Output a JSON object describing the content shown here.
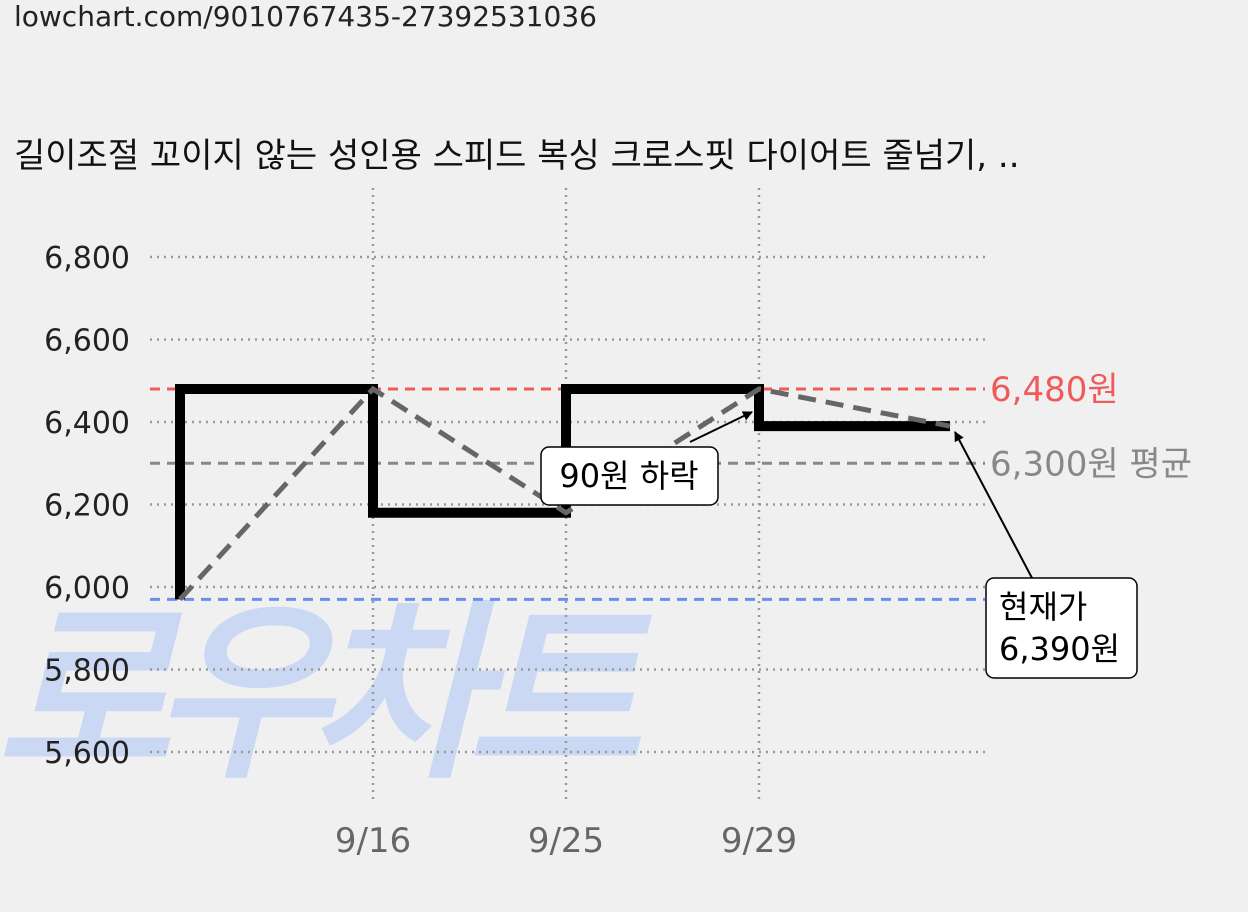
{
  "url": "lowchart.com/9010767435-27392531036",
  "title": "길이조절 꼬이지 않는 성인용 스피드 복싱 크로스핏 다이어트 줄넘기, ..",
  "watermark": "로우차트",
  "chart_data": {
    "type": "line",
    "y_ticks": [
      5600,
      5800,
      6000,
      6200,
      6400,
      6600,
      6800
    ],
    "y_tick_labels": [
      "5,600",
      "5,800",
      "6,000",
      "6,200",
      "6,400",
      "6,600",
      "6,800"
    ],
    "x_tick_labels": [
      "9/16",
      "9/25",
      "9/29"
    ],
    "ylim": [
      5600,
      6800
    ],
    "grid": true,
    "series": [
      {
        "style": "step",
        "color": "#000000",
        "points": [
          {
            "x": 0,
            "y": 5970
          },
          {
            "x": 0,
            "y": 6480
          },
          {
            "x": 1,
            "y": 6480
          },
          {
            "x": 1,
            "y": 6180
          },
          {
            "x": 2,
            "y": 6180
          },
          {
            "x": 2,
            "y": 6480
          },
          {
            "x": 3,
            "y": 6480
          },
          {
            "x": 3,
            "y": 6390
          },
          {
            "x": 4,
            "y": 6390
          }
        ]
      },
      {
        "style": "dashed",
        "color": "#666666",
        "points": [
          {
            "x": 0,
            "y": 5970
          },
          {
            "x": 1,
            "y": 6480
          },
          {
            "x": 2,
            "y": 6180
          },
          {
            "x": 3,
            "y": 6480
          },
          {
            "x": 4,
            "y": 6390
          }
        ]
      }
    ],
    "reference_lines": [
      {
        "value": 6480,
        "label": "6,480원",
        "color": "#f05a5a"
      },
      {
        "value": 6300,
        "label": "6,300원 평균",
        "color": "#888888"
      },
      {
        "value": 5970,
        "label": "",
        "color": "#6a8ff0"
      }
    ],
    "annotations": [
      {
        "text": "90원 하락"
      },
      {
        "lines": [
          "현재가",
          "6,390원"
        ]
      }
    ]
  }
}
